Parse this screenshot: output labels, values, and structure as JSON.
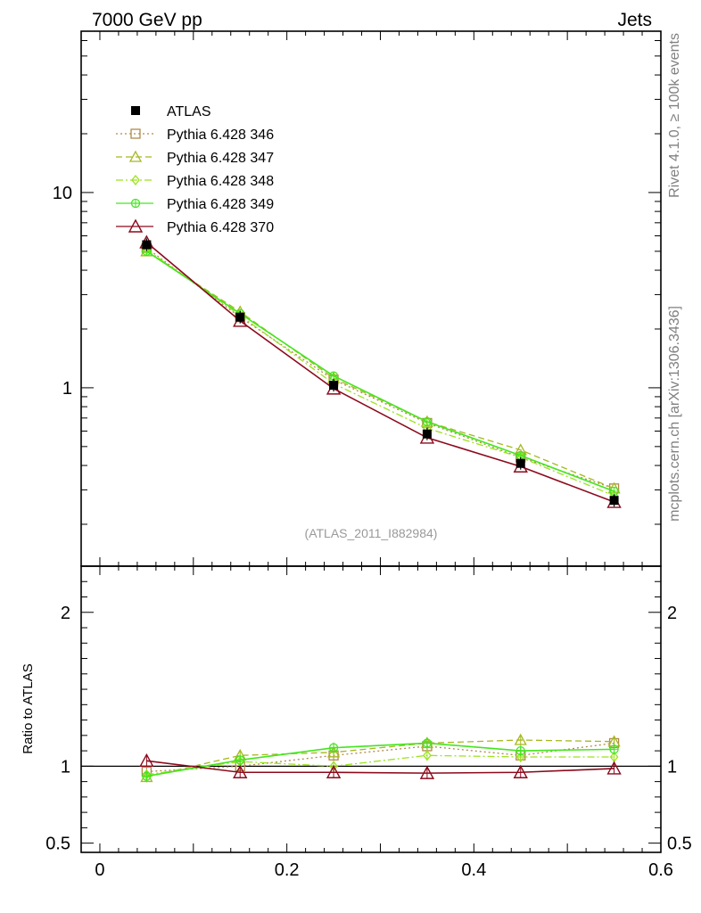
{
  "header": {
    "left_title": "7000 GeV pp",
    "right_title": "Jets",
    "side_top": "Rivet 4.1.0, ≥ 100k events",
    "side_bottom": "mcplots.cern.ch [arXiv:1306.3436]",
    "analysis_id": "(ATLAS_2011_I882984)"
  },
  "colors": {
    "data": "#000000",
    "s346": "#b08a4a",
    "s347": "#a6b81e",
    "s348": "#9be31c",
    "s349": "#43e61e",
    "s370": "#8b0a1c",
    "axis": "#000000",
    "side_text": "#808080"
  },
  "chart_data": [
    {
      "type": "line",
      "panel": "main",
      "yscale": "log",
      "xlim": [
        -0.02,
        0.6
      ],
      "ylim": [
        0.122,
        67
      ],
      "yticks": [
        1,
        10
      ],
      "ytick_labels": [
        "1",
        "10"
      ],
      "x": [
        0.05,
        0.15,
        0.25,
        0.35,
        0.45,
        0.55
      ],
      "series": [
        {
          "key": "data",
          "name": "ATLAS",
          "marker": "filled-square",
          "line": "none",
          "values": [
            5.4,
            2.3,
            1.03,
            0.58,
            0.41,
            0.265
          ]
        },
        {
          "key": "s346",
          "name": "Pythia 6.428 346",
          "marker": "open-square",
          "line": "dotted",
          "values": [
            5.2,
            2.3,
            1.1,
            0.66,
            0.44,
            0.305
          ]
        },
        {
          "key": "s347",
          "name": "Pythia 6.428 347",
          "marker": "open-triangle",
          "line": "dashed",
          "values": [
            5.0,
            2.45,
            1.12,
            0.67,
            0.48,
            0.305
          ]
        },
        {
          "key": "s348",
          "name": "Pythia 6.428 348",
          "marker": "open-diamond",
          "line": "dashdot",
          "values": [
            5.1,
            2.35,
            1.05,
            0.62,
            0.44,
            0.28
          ]
        },
        {
          "key": "s349",
          "name": "Pythia 6.428 349",
          "marker": "open-circle-cross",
          "line": "solid",
          "values": [
            5.0,
            2.4,
            1.15,
            0.67,
            0.45,
            0.295
          ]
        },
        {
          "key": "s370",
          "name": "Pythia 6.428 370",
          "marker": "open-triangle-large",
          "line": "solid",
          "values": [
            5.55,
            2.2,
            0.99,
            0.555,
            0.395,
            0.26
          ]
        }
      ]
    },
    {
      "type": "line",
      "panel": "ratio",
      "ylabel": "Ratio to ATLAS",
      "xlim": [
        -0.02,
        0.6
      ],
      "ylim": [
        0.44,
        2.3
      ],
      "yticks": [
        0.5,
        1,
        2
      ],
      "ytick_labels": [
        "0.5",
        "1",
        "2"
      ],
      "xticks": [
        0,
        0.2,
        0.4,
        0.6
      ],
      "xtick_labels": [
        "0",
        "0.2",
        "0.4",
        "0.6"
      ],
      "reference_line": 1,
      "x": [
        0.05,
        0.15,
        0.25,
        0.35,
        0.45,
        0.55
      ],
      "series": [
        {
          "key": "s346",
          "values": [
            0.965,
            1.0,
            1.07,
            1.13,
            1.07,
            1.15
          ]
        },
        {
          "key": "s347",
          "values": [
            0.93,
            1.07,
            1.09,
            1.15,
            1.17,
            1.16
          ]
        },
        {
          "key": "s348",
          "values": [
            0.945,
            1.03,
            1.0,
            1.07,
            1.06,
            1.06
          ]
        },
        {
          "key": "s349",
          "values": [
            0.935,
            1.04,
            1.12,
            1.15,
            1.1,
            1.11
          ]
        },
        {
          "key": "s370",
          "values": [
            1.035,
            0.96,
            0.96,
            0.955,
            0.96,
            0.985
          ]
        }
      ]
    }
  ]
}
